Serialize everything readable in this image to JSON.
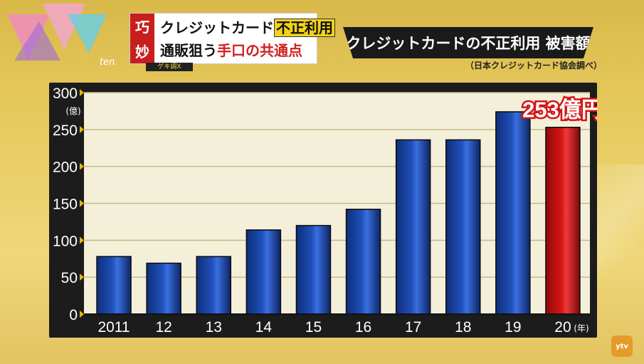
{
  "broadcaster": {
    "logo_text": "ten.",
    "watermark": "ytv"
  },
  "topic": {
    "side_chars": [
      "巧",
      "妙"
    ],
    "line1_prefix": "クレジットカード",
    "line1_highlight": "不正利用",
    "line2_prefix": "通販狙う",
    "line2_red": "手口の共通点",
    "tag": "ゲキ調X"
  },
  "banner": {
    "title": "クレジットカードの不正利用 被害額",
    "source": "（日本クレジットカード協会調べ）"
  },
  "chart_data": {
    "type": "bar",
    "title": "クレジットカードの不正利用 被害額",
    "categories": [
      "2011",
      "12",
      "13",
      "14",
      "15",
      "16",
      "17",
      "18",
      "19",
      "20"
    ],
    "values": [
      78,
      69,
      78,
      114,
      120,
      142,
      236,
      236,
      274,
      253
    ],
    "highlight_index": 9,
    "highlight_label": "253億円",
    "ylabel": "(億)",
    "xlabel": "(年)",
    "ylim": [
      0,
      300
    ],
    "yticks": [
      0,
      50,
      100,
      150,
      200,
      250,
      300
    ],
    "grid": true,
    "colors": {
      "bar": "#1f4fb8",
      "highlight": "#d41414",
      "grid": "#c8b98a",
      "plot_bg": "#f4efd9"
    }
  }
}
